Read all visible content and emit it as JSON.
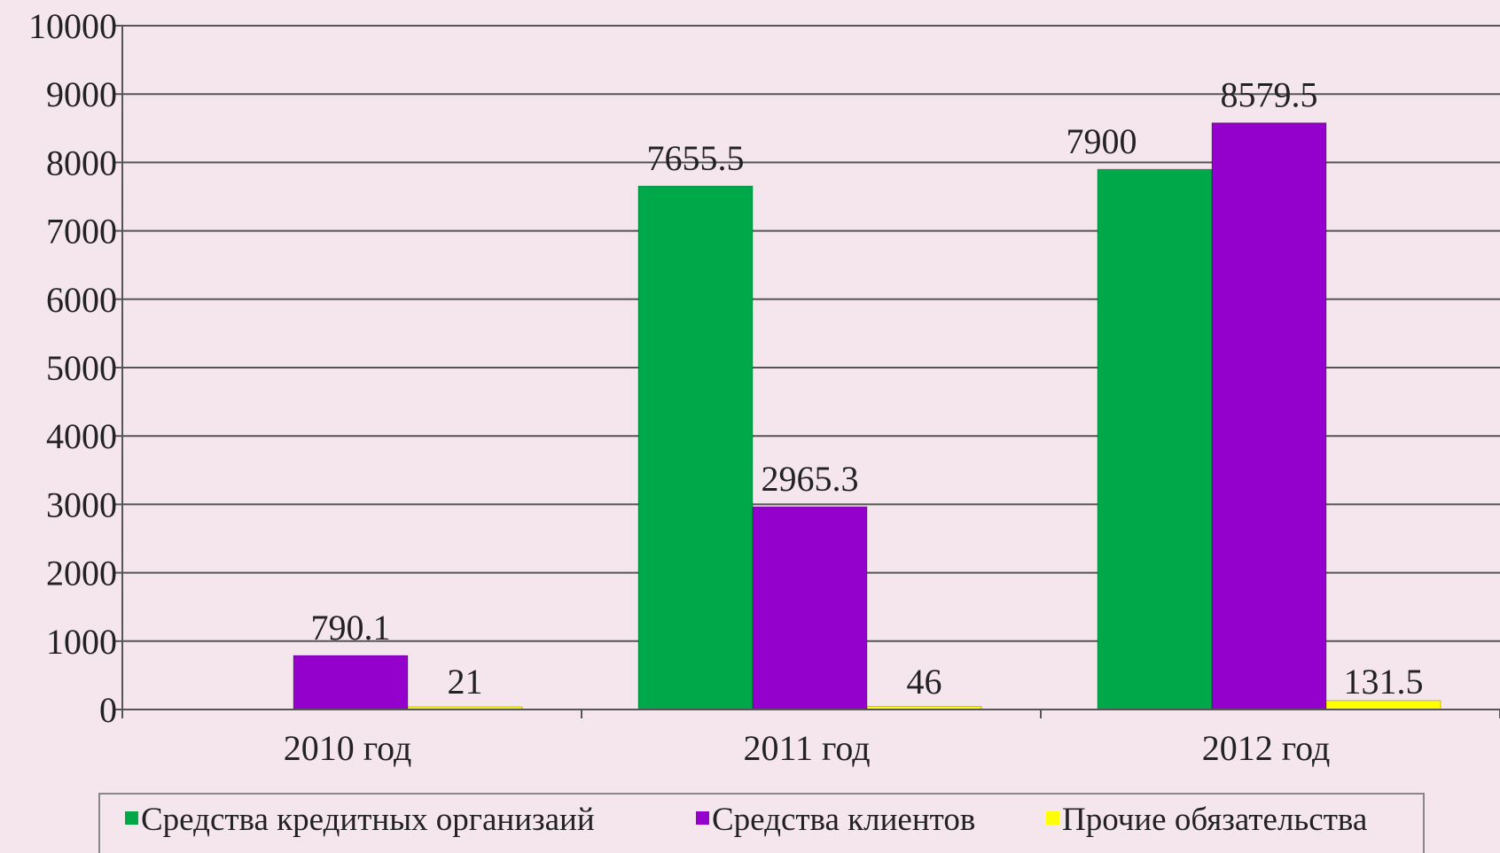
{
  "chart_data": {
    "type": "bar",
    "categories": [
      "2010 год",
      "2011 год",
      "2012 год"
    ],
    "series": [
      {
        "name": "Средства кредитных организаий",
        "color": "#00a84a",
        "values": [
          0,
          7655.5,
          7900
        ]
      },
      {
        "name": "Средства клиентов",
        "color": "#9400cc",
        "values": [
          790.1,
          2965.3,
          8579.5
        ]
      },
      {
        "name": "Прочие обязательства",
        "color": "#ffff00",
        "values": [
          21,
          46,
          131.5
        ]
      }
    ],
    "data_labels": [
      [
        "",
        "7655.5",
        "7900"
      ],
      [
        "790.1",
        "2965.3",
        "8579.5"
      ],
      [
        "21",
        "46",
        "131.5"
      ]
    ],
    "y_ticks": [
      "0",
      "1000",
      "2000",
      "3000",
      "4000",
      "5000",
      "6000",
      "7000",
      "8000",
      "9000",
      "10000"
    ],
    "ylim": [
      0,
      10000
    ],
    "grid": true,
    "legend_position": "bottom",
    "title": "",
    "xlabel": "",
    "ylabel": ""
  }
}
